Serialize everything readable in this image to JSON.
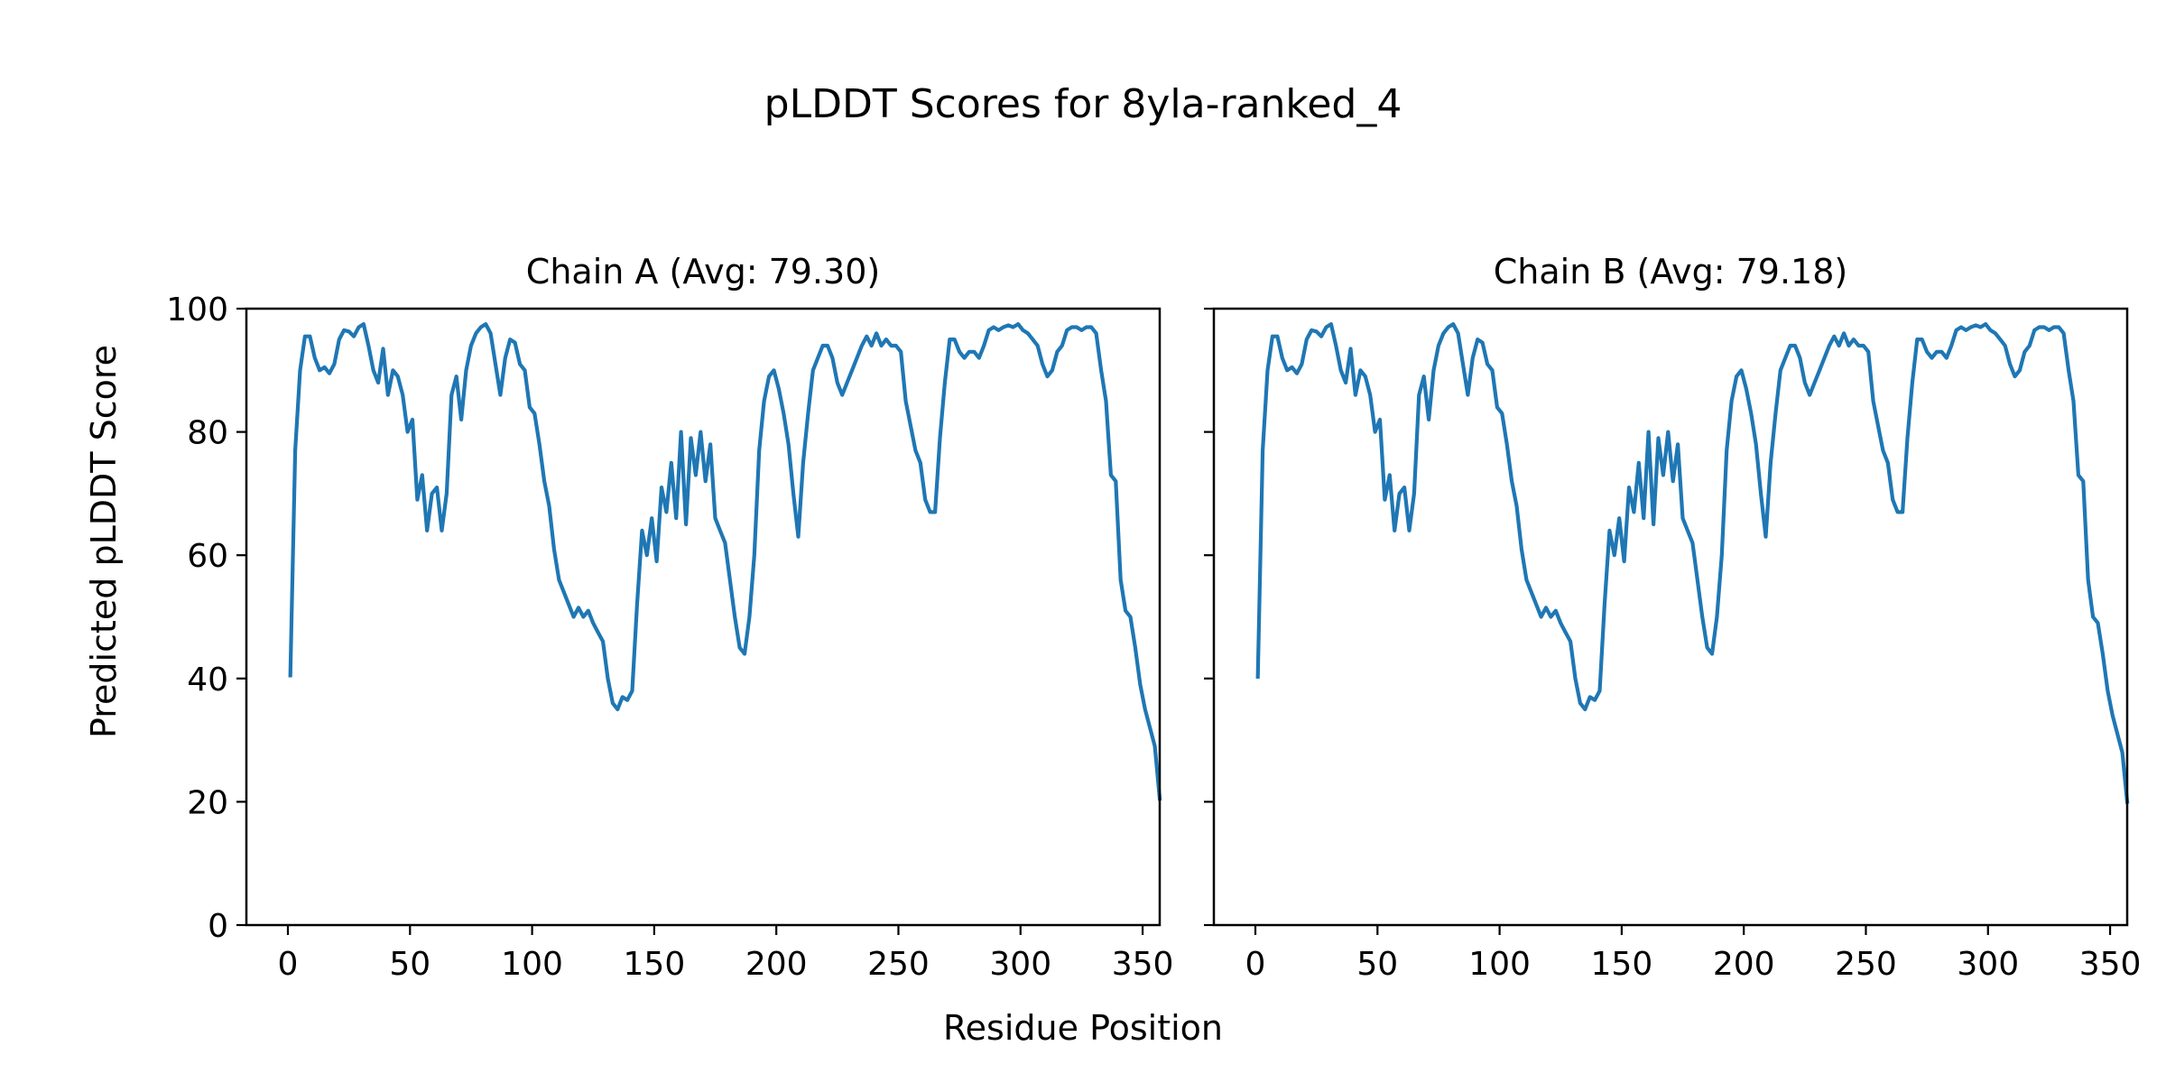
{
  "figure": {
    "title": "pLDDT Scores for 8yla-ranked_4",
    "xlabel": "Residue Position",
    "ylabel": "Predicted pLDDT Score",
    "line_color": "#1f77b4"
  },
  "chart_data": [
    {
      "type": "line",
      "title": "Chain A (Avg: 79.30)",
      "xlabel": "Residue Position",
      "ylabel": "Predicted pLDDT Score",
      "xlim": [
        -17,
        357
      ],
      "ylim": [
        0,
        100
      ],
      "xticks": [
        0,
        50,
        100,
        150,
        200,
        250,
        300,
        350
      ],
      "yticks": [
        0,
        20,
        40,
        60,
        80,
        100
      ],
      "x_start": 1,
      "x_step": 2,
      "values": [
        40.5,
        77,
        90,
        95.5,
        95.5,
        92,
        90,
        90.5,
        89.5,
        91,
        95,
        96.5,
        96.3,
        95.5,
        97,
        97.5,
        94,
        90,
        88,
        93.5,
        86,
        90,
        89,
        86,
        80,
        82,
        69,
        73,
        64,
        70,
        71,
        64,
        70,
        86,
        89,
        82,
        90,
        94,
        96,
        97,
        97.5,
        96,
        91,
        86,
        92,
        95,
        94.5,
        91,
        90,
        84,
        83,
        78,
        72,
        68,
        61,
        56,
        54,
        52,
        50,
        51.5,
        50,
        51,
        49,
        47.5,
        46,
        40,
        36,
        35,
        37,
        36.5,
        38,
        52,
        64,
        60,
        66,
        59,
        71,
        67,
        75,
        66,
        80,
        65,
        79,
        73,
        80,
        72,
        78,
        66,
        64,
        62,
        56,
        50,
        45,
        44,
        50,
        60,
        77,
        85,
        89,
        90,
        87,
        83,
        78,
        70,
        63,
        75,
        83,
        90,
        92,
        94,
        94,
        92,
        88,
        86,
        88,
        90,
        92,
        94,
        95.5,
        94,
        96,
        94,
        95,
        94,
        94,
        93,
        85,
        81,
        77,
        75,
        69,
        67,
        67,
        79,
        88,
        95,
        95,
        93,
        92,
        93,
        93,
        92,
        94,
        96.5,
        97,
        96.5,
        97,
        97.3,
        97,
        97.5,
        96.5,
        96,
        95,
        94,
        91,
        89,
        90,
        93,
        94,
        96.5,
        97,
        97,
        96.5,
        97,
        97,
        96,
        90,
        85,
        73,
        72,
        56,
        51,
        50,
        45,
        39,
        35,
        32,
        29,
        20.5
      ]
    },
    {
      "type": "line",
      "title": "Chain B (Avg: 79.18)",
      "xlabel": "Residue Position",
      "ylabel": "Predicted pLDDT Score",
      "xlim": [
        -17,
        357
      ],
      "ylim": [
        0,
        100
      ],
      "xticks": [
        0,
        50,
        100,
        150,
        200,
        250,
        300,
        350
      ],
      "yticks": [
        0,
        20,
        40,
        60,
        80,
        100
      ],
      "x_start": 1,
      "x_step": 2,
      "values": [
        40.3,
        77,
        90,
        95.5,
        95.5,
        92,
        90,
        90.5,
        89.5,
        91,
        95,
        96.5,
        96.3,
        95.5,
        97,
        97.5,
        94,
        90,
        88,
        93.5,
        86,
        90,
        89,
        86,
        80,
        82,
        69,
        73,
        64,
        70,
        71,
        64,
        70,
        86,
        89,
        82,
        90,
        94,
        96,
        97,
        97.5,
        96,
        91,
        86,
        92,
        95,
        94.5,
        91,
        90,
        84,
        83,
        78,
        72,
        68,
        61,
        56,
        54,
        52,
        50,
        51.5,
        50,
        51,
        49,
        47.5,
        46,
        40,
        36,
        35,
        37,
        36.5,
        38,
        52,
        64,
        60,
        66,
        59,
        71,
        67,
        75,
        66,
        80,
        65,
        79,
        73,
        80,
        72,
        78,
        66,
        64,
        62,
        56,
        50,
        45,
        44,
        50,
        60,
        77,
        85,
        89,
        90,
        87,
        83,
        78,
        70,
        63,
        75,
        83,
        90,
        92,
        94,
        94,
        92,
        88,
        86,
        88,
        90,
        92,
        94,
        95.5,
        94,
        96,
        94,
        95,
        94,
        94,
        93,
        85,
        81,
        77,
        75,
        69,
        67,
        67,
        79,
        88,
        95,
        95,
        93,
        92,
        93,
        93,
        92,
        94,
        96.5,
        97,
        96.5,
        97,
        97.3,
        97,
        97.5,
        96.5,
        96,
        95,
        94,
        91,
        89,
        90,
        93,
        94,
        96.5,
        97,
        97,
        96.5,
        97,
        97,
        96,
        90,
        85,
        73,
        72,
        56,
        50,
        49,
        44,
        38,
        34,
        31,
        28,
        20
      ]
    }
  ]
}
